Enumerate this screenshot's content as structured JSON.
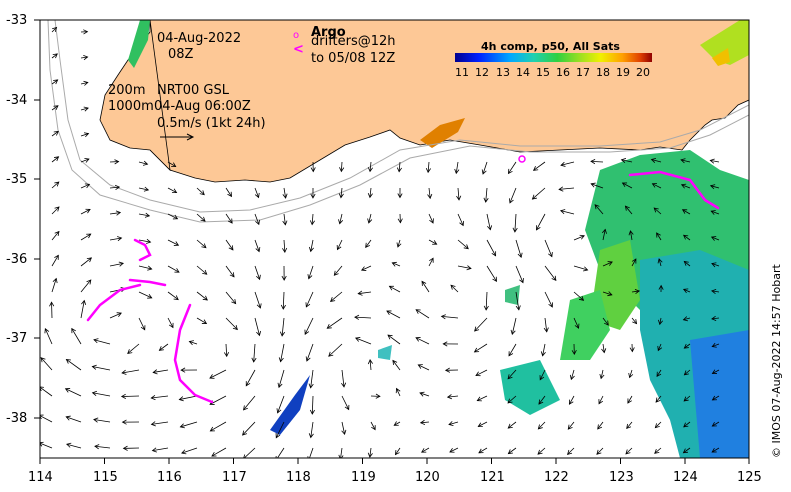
{
  "map": {
    "date": "04-Aug-2022",
    "time": "08Z",
    "depth_line1": "200m",
    "label_line1": "NRT00 GSL",
    "depth_line2": "1000m",
    "label_line2": "04-Aug 06:00Z",
    "scale_label": "0.5m/s (1kt 24h)",
    "argo": {
      "title": "Argo",
      "line1": "drifters@12h",
      "line2": "to 05/08 12Z",
      "marker_color": "#ff00ff"
    },
    "colorbar": {
      "title": "4h comp, p50, All Sats",
      "ticks": [
        "11",
        "12",
        "13",
        "14",
        "15",
        "16",
        "17",
        "18",
        "19",
        "20"
      ]
    },
    "x_ticks": [
      "114",
      "115",
      "116",
      "117",
      "118",
      "119",
      "120",
      "121",
      "122",
      "123",
      "124",
      "125"
    ],
    "y_ticks": [
      "-33",
      "-34",
      "-35",
      "-36",
      "-37",
      "-38"
    ],
    "credit": "© IMOS 07-Aug-2022 14:57 Hobart",
    "colors": {
      "land": "#fdc896",
      "ocean": "#ffffff",
      "drifter": "#ff00ff",
      "isobath": "#aaaaaa"
    }
  }
}
